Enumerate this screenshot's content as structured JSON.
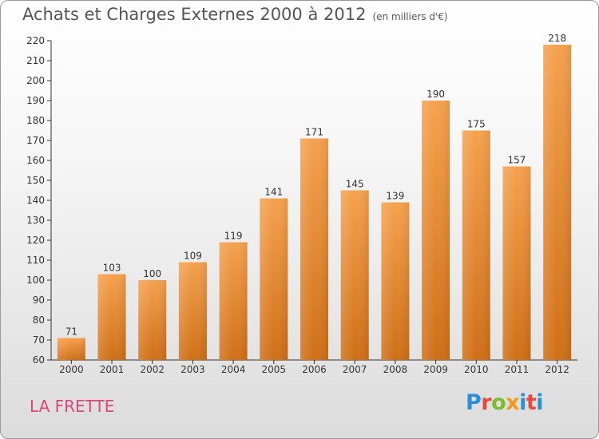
{
  "header": {
    "title": "Achats et Charges Externes 2000 à 2012",
    "unit": "(en milliers d'€)"
  },
  "footer": {
    "commune": "LA FRETTE",
    "brand": "Proxiti"
  },
  "colors": {
    "bar_top": "#f5a14e",
    "bar_bottom": "#cf6f17",
    "commune_text": "#e0457a",
    "axis": "#333333",
    "grid": "#bbbbbb"
  },
  "chart_data": {
    "type": "bar",
    "title": "Achats et Charges Externes 2000 à 2012",
    "subtitle": "(en milliers d'€)",
    "categories": [
      "2000",
      "2001",
      "2002",
      "2003",
      "2004",
      "2005",
      "2006",
      "2007",
      "2008",
      "2009",
      "2010",
      "2011",
      "2012"
    ],
    "values": [
      71,
      103,
      100,
      109,
      119,
      141,
      171,
      145,
      139,
      190,
      175,
      157,
      218
    ],
    "ylim": [
      60,
      220
    ],
    "yticks": [
      60,
      70,
      80,
      90,
      100,
      110,
      120,
      130,
      140,
      150,
      160,
      170,
      180,
      190,
      200,
      210,
      220
    ],
    "grid": false,
    "data_labels": true
  }
}
